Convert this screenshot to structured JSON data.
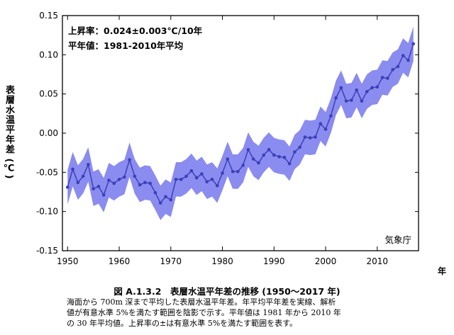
{
  "chart_data": {
    "type": "line",
    "ylabel": "表層水温平年差 (℃)",
    "xunit": "年",
    "xlim": [
      1949,
      2018
    ],
    "ylim": [
      -0.15,
      0.15
    ],
    "xticks": [
      1950,
      1960,
      1970,
      1980,
      1990,
      2000,
      2010
    ],
    "yticks": [
      0.15,
      0.1,
      0.05,
      0.0,
      -0.05,
      -0.1,
      -0.15
    ],
    "ytick_labels": [
      "0.15",
      "0.10",
      "0.05",
      "0.00",
      "-0.05",
      "-0.10",
      "-0.15"
    ],
    "annotations": [
      "上昇率：0.024±0.003℃/10年",
      "平年値：1981-2010年平均"
    ],
    "source": "気象庁",
    "x": [
      1950,
      1951,
      1952,
      1953,
      1954,
      1955,
      1956,
      1957,
      1958,
      1959,
      1960,
      1961,
      1962,
      1963,
      1964,
      1965,
      1966,
      1967,
      1968,
      1969,
      1970,
      1971,
      1972,
      1973,
      1974,
      1975,
      1976,
      1977,
      1978,
      1979,
      1980,
      1981,
      1982,
      1983,
      1984,
      1985,
      1986,
      1987,
      1988,
      1989,
      1990,
      1991,
      1992,
      1993,
      1994,
      1995,
      1996,
      1997,
      1998,
      1999,
      2000,
      2001,
      2002,
      2003,
      2004,
      2005,
      2006,
      2007,
      2008,
      2009,
      2010,
      2011,
      2012,
      2013,
      2014,
      2015,
      2016,
      2017
    ],
    "values": [
      -0.069,
      -0.046,
      -0.063,
      -0.055,
      -0.04,
      -0.071,
      -0.068,
      -0.079,
      -0.06,
      -0.064,
      -0.059,
      -0.056,
      -0.034,
      -0.055,
      -0.066,
      -0.063,
      -0.064,
      -0.076,
      -0.089,
      -0.081,
      -0.085,
      -0.059,
      -0.059,
      -0.055,
      -0.048,
      -0.057,
      -0.052,
      -0.062,
      -0.059,
      -0.067,
      -0.051,
      -0.033,
      -0.049,
      -0.049,
      -0.041,
      -0.021,
      -0.033,
      -0.038,
      -0.028,
      -0.021,
      -0.028,
      -0.03,
      -0.031,
      -0.039,
      -0.024,
      -0.018,
      -0.005,
      -0.006,
      -0.005,
      0.012,
      0.005,
      0.022,
      0.045,
      0.058,
      0.041,
      0.042,
      0.055,
      0.041,
      0.053,
      0.058,
      0.059,
      0.071,
      0.07,
      0.081,
      0.085,
      0.099,
      0.093,
      0.114
    ],
    "band_halfwidth": 0.022,
    "colors": {
      "line": "#3d3fb8",
      "band": "#8a8cf0",
      "axis": "#000000"
    }
  },
  "figure_title": "図 A.1.3.2　表層水温平年差の推移 (1950〜2017 年)",
  "caption": [
    "海面から 700m 深まで平均した表層水温平年差。年平均平年差を実線、解析",
    "値が有意水準 5%を満たす範囲を陰影で示す。平年値は 1981 年から 2010 年",
    "の 30 年平均値。上昇率の±は有意水準 5%を満たす範囲を表す。"
  ]
}
